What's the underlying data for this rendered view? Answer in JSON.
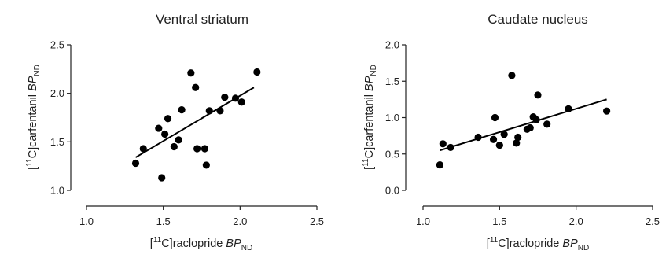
{
  "chart_data": [
    {
      "type": "scatter",
      "title": "Ventral striatum",
      "xlabel": {
        "bracket_open": "[",
        "sup": "11",
        "base": "C]raclopride ",
        "italic": "BP",
        "sub": "ND"
      },
      "ylabel": {
        "bracket_open": "[",
        "sup": "11",
        "base": "C]carfentanil ",
        "italic": "BP",
        "sub": "ND"
      },
      "xlim": [
        1.0,
        2.5
      ],
      "ylim": [
        1.0,
        2.5
      ],
      "xticks": [
        "1.0",
        "1.5",
        "2.0",
        "2.5"
      ],
      "yticks": [
        "1.0",
        "1.5",
        "2.0",
        "2.5"
      ],
      "grid": false,
      "series": [
        {
          "points": [
            {
              "x": 1.32,
              "y": 1.28
            },
            {
              "x": 1.37,
              "y": 1.43
            },
            {
              "x": 1.47,
              "y": 1.64
            },
            {
              "x": 1.49,
              "y": 1.13
            },
            {
              "x": 1.51,
              "y": 1.58
            },
            {
              "x": 1.53,
              "y": 1.74
            },
            {
              "x": 1.57,
              "y": 1.45
            },
            {
              "x": 1.6,
              "y": 1.52
            },
            {
              "x": 1.62,
              "y": 1.83
            },
            {
              "x": 1.68,
              "y": 2.21
            },
            {
              "x": 1.71,
              "y": 2.06
            },
            {
              "x": 1.72,
              "y": 1.43
            },
            {
              "x": 1.77,
              "y": 1.43
            },
            {
              "x": 1.78,
              "y": 1.26
            },
            {
              "x": 1.8,
              "y": 1.82
            },
            {
              "x": 1.87,
              "y": 1.82
            },
            {
              "x": 1.9,
              "y": 1.96
            },
            {
              "x": 1.97,
              "y": 1.95
            },
            {
              "x": 2.01,
              "y": 1.91
            },
            {
              "x": 2.11,
              "y": 2.22
            }
          ],
          "fit": {
            "x": [
              1.32,
              2.09
            ],
            "y": [
              1.34,
              2.06
            ]
          }
        }
      ]
    },
    {
      "type": "scatter",
      "title": "Caudate nucleus",
      "xlabel": {
        "bracket_open": "[",
        "sup": "11",
        "base": "C]raclopride ",
        "italic": "BP",
        "sub": "ND"
      },
      "ylabel": {
        "bracket_open": "[",
        "sup": "11",
        "base": "C]carfentanil ",
        "italic": "BP",
        "sub": "ND"
      },
      "xlim": [
        1.0,
        2.5
      ],
      "ylim": [
        0.0,
        2.0
      ],
      "xticks": [
        "1.0",
        "1.5",
        "2.0",
        "2.5"
      ],
      "yticks": [
        "0.0",
        "0.5",
        "1.0",
        "1.5",
        "2.0"
      ],
      "grid": false,
      "series": [
        {
          "points": [
            {
              "x": 1.11,
              "y": 0.35
            },
            {
              "x": 1.13,
              "y": 0.64
            },
            {
              "x": 1.18,
              "y": 0.59
            },
            {
              "x": 1.36,
              "y": 0.73
            },
            {
              "x": 1.46,
              "y": 0.7
            },
            {
              "x": 1.47,
              "y": 1.0
            },
            {
              "x": 1.5,
              "y": 0.62
            },
            {
              "x": 1.53,
              "y": 0.77
            },
            {
              "x": 1.58,
              "y": 1.58
            },
            {
              "x": 1.61,
              "y": 0.65
            },
            {
              "x": 1.62,
              "y": 0.73
            },
            {
              "x": 1.68,
              "y": 0.84
            },
            {
              "x": 1.7,
              "y": 0.86
            },
            {
              "x": 1.72,
              "y": 1.01
            },
            {
              "x": 1.74,
              "y": 0.97
            },
            {
              "x": 1.75,
              "y": 1.31
            },
            {
              "x": 1.81,
              "y": 0.91
            },
            {
              "x": 1.95,
              "y": 1.12
            },
            {
              "x": 2.2,
              "y": 1.09
            }
          ],
          "fit": {
            "x": [
              1.11,
              2.2
            ],
            "y": [
              0.55,
              1.25
            ]
          }
        }
      ]
    }
  ]
}
